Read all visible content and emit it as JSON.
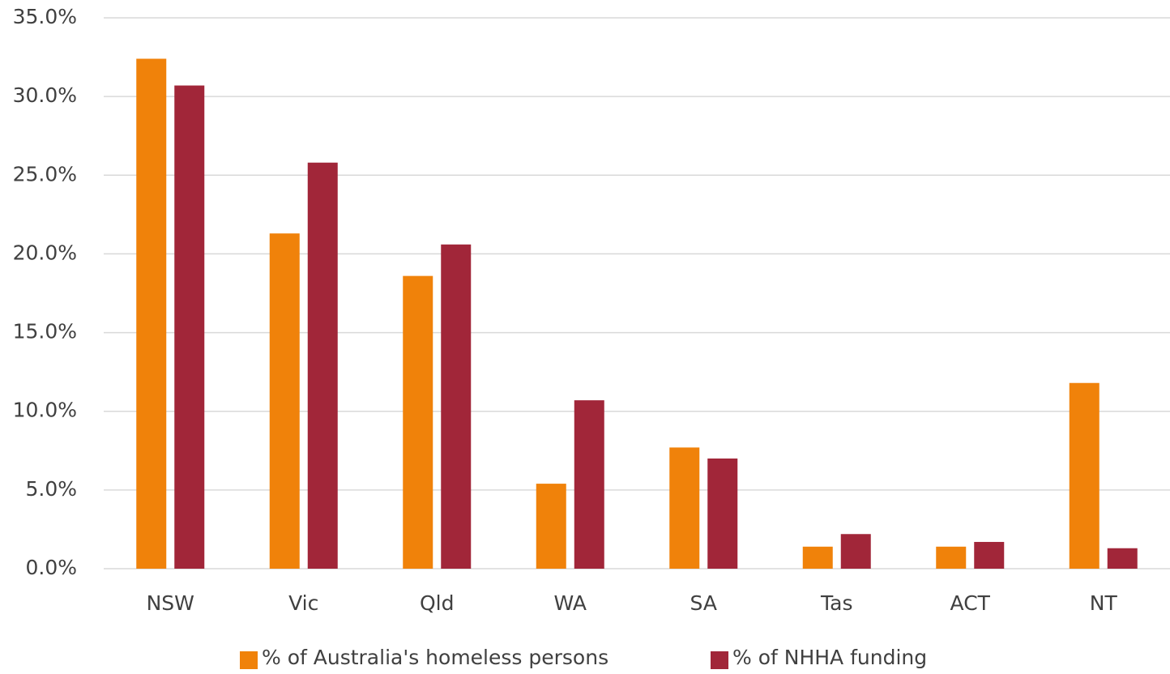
{
  "chart_data": {
    "type": "bar",
    "categories": [
      "NSW",
      "Vic",
      "Qld",
      "WA",
      "SA",
      "Tas",
      "ACT",
      "NT"
    ],
    "series": [
      {
        "name": "% of Australia's homeless persons",
        "color": "#f0820a",
        "values": [
          32.4,
          21.3,
          18.6,
          5.4,
          7.7,
          1.4,
          1.4,
          11.8
        ]
      },
      {
        "name": "% of NHHA funding",
        "color": "#a12639",
        "values": [
          30.7,
          25.8,
          20.6,
          10.7,
          7.0,
          2.2,
          1.7,
          1.3
        ]
      }
    ],
    "ylim": [
      0,
      35
    ],
    "yticks": [
      {
        "value": 0,
        "label": "0.0%"
      },
      {
        "value": 5,
        "label": "5.0%"
      },
      {
        "value": 10,
        "label": "10.0%"
      },
      {
        "value": 15,
        "label": "15.0%"
      },
      {
        "value": 20,
        "label": "20.0%"
      },
      {
        "value": 25,
        "label": "25.0%"
      },
      {
        "value": 30,
        "label": "30.0%"
      },
      {
        "value": 35,
        "label": "35.0%"
      }
    ],
    "grid": true,
    "legend": "bottom"
  }
}
